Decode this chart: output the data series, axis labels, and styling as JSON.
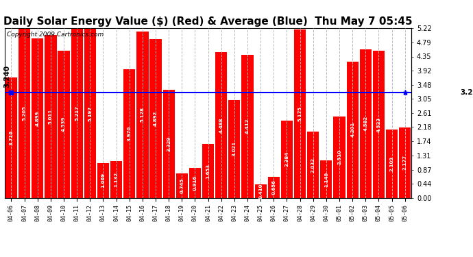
{
  "title": "Daily Solar Energy Value ($) (Red) & Average (Blue)  Thu May 7 05:45",
  "copyright": "Copyright 2009 Cartronics.com",
  "average": 3.24,
  "categories": [
    "04-06",
    "04-07",
    "04-08",
    "04-09",
    "04-10",
    "04-11",
    "04-12",
    "04-13",
    "04-14",
    "04-15",
    "04-16",
    "04-17",
    "04-18",
    "04-19",
    "04-20",
    "04-21",
    "04-22",
    "04-23",
    "04-24",
    "04-25",
    "04-26",
    "04-27",
    "04-28",
    "04-29",
    "04-30",
    "05-01",
    "05-02",
    "05-03",
    "05-04",
    "05-05",
    "05-06"
  ],
  "values": [
    3.716,
    5.205,
    4.899,
    5.011,
    4.539,
    5.217,
    5.197,
    1.069,
    1.132,
    3.97,
    5.128,
    4.892,
    3.329,
    0.745,
    0.916,
    1.653,
    4.488,
    3.021,
    4.412,
    0.41,
    0.656,
    2.384,
    5.175,
    2.032,
    1.149,
    2.51,
    4.201,
    4.582,
    4.523,
    2.109,
    2.177
  ],
  "bar_color": "#FF0000",
  "avg_line_color": "#0000FF",
  "bg_color": "#FFFFFF",
  "plot_bg_color": "#FFFFFF",
  "grid_color": "#BBBBBB",
  "y_right_ticks": [
    0.0,
    0.44,
    0.87,
    1.31,
    1.74,
    2.18,
    2.61,
    3.05,
    3.48,
    3.92,
    4.35,
    4.79,
    5.22
  ],
  "ylim": [
    0,
    5.22
  ],
  "title_fontsize": 11,
  "copyright_fontsize": 6.5,
  "bar_label_fontsize": 5.0,
  "tick_fontsize": 7.0,
  "avg_label_fontsize": 7.5
}
